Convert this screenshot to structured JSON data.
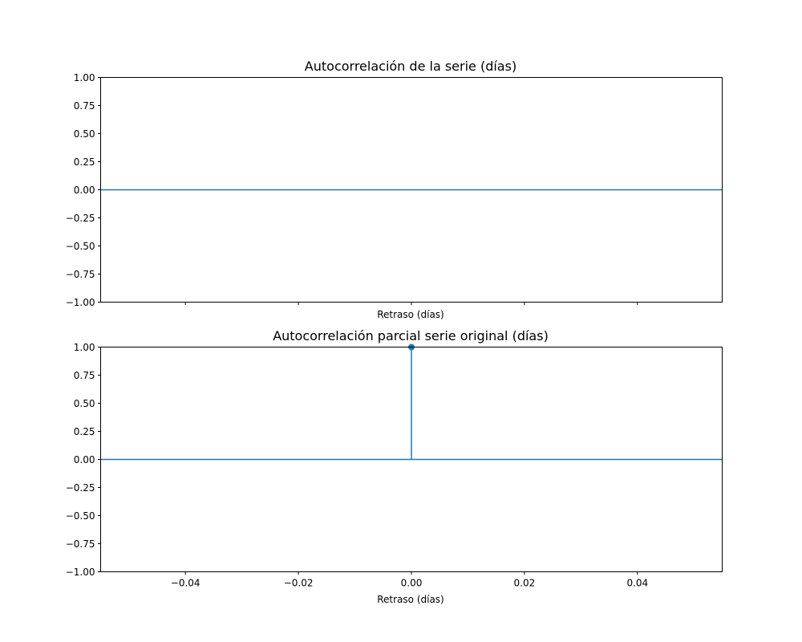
{
  "colors": {
    "series": "#1f77b4"
  },
  "chart_data": [
    {
      "type": "stem",
      "title": "Autocorrelación de la serie (días)",
      "xlabel": "Retraso (días)",
      "ylabel": "",
      "xlim": [
        -0.055,
        0.055
      ],
      "ylim": [
        -1.0,
        1.0
      ],
      "x_ticks": [
        -0.04,
        -0.02,
        0.0,
        0.02,
        0.04
      ],
      "show_x_tick_labels": false,
      "y_ticks": [
        -1.0,
        -0.75,
        -0.5,
        -0.25,
        0.0,
        0.25,
        0.5,
        0.75,
        1.0
      ],
      "y_tick_labels": [
        "−1.00",
        "−0.75",
        "−0.50",
        "−0.25",
        "0.00",
        "0.25",
        "0.50",
        "0.75",
        "1.00"
      ],
      "x": [],
      "y": [],
      "baseline": 0.0,
      "grid": false
    },
    {
      "type": "stem",
      "title": "Autocorrelación parcial serie original (días)",
      "xlabel": "Retraso (días)",
      "ylabel": "",
      "xlim": [
        -0.055,
        0.055
      ],
      "ylim": [
        -1.0,
        1.0
      ],
      "x_ticks": [
        -0.04,
        -0.02,
        0.0,
        0.02,
        0.04
      ],
      "x_tick_labels": [
        "−0.04",
        "−0.02",
        "0.00",
        "0.02",
        "0.04"
      ],
      "show_x_tick_labels": true,
      "y_ticks": [
        -1.0,
        -0.75,
        -0.5,
        -0.25,
        0.0,
        0.25,
        0.5,
        0.75,
        1.0
      ],
      "y_tick_labels": [
        "−1.00",
        "−0.75",
        "−0.50",
        "−0.25",
        "0.00",
        "0.25",
        "0.50",
        "0.75",
        "1.00"
      ],
      "x": [
        0.0
      ],
      "y": [
        1.0
      ],
      "baseline": 0.0,
      "grid": false
    }
  ]
}
